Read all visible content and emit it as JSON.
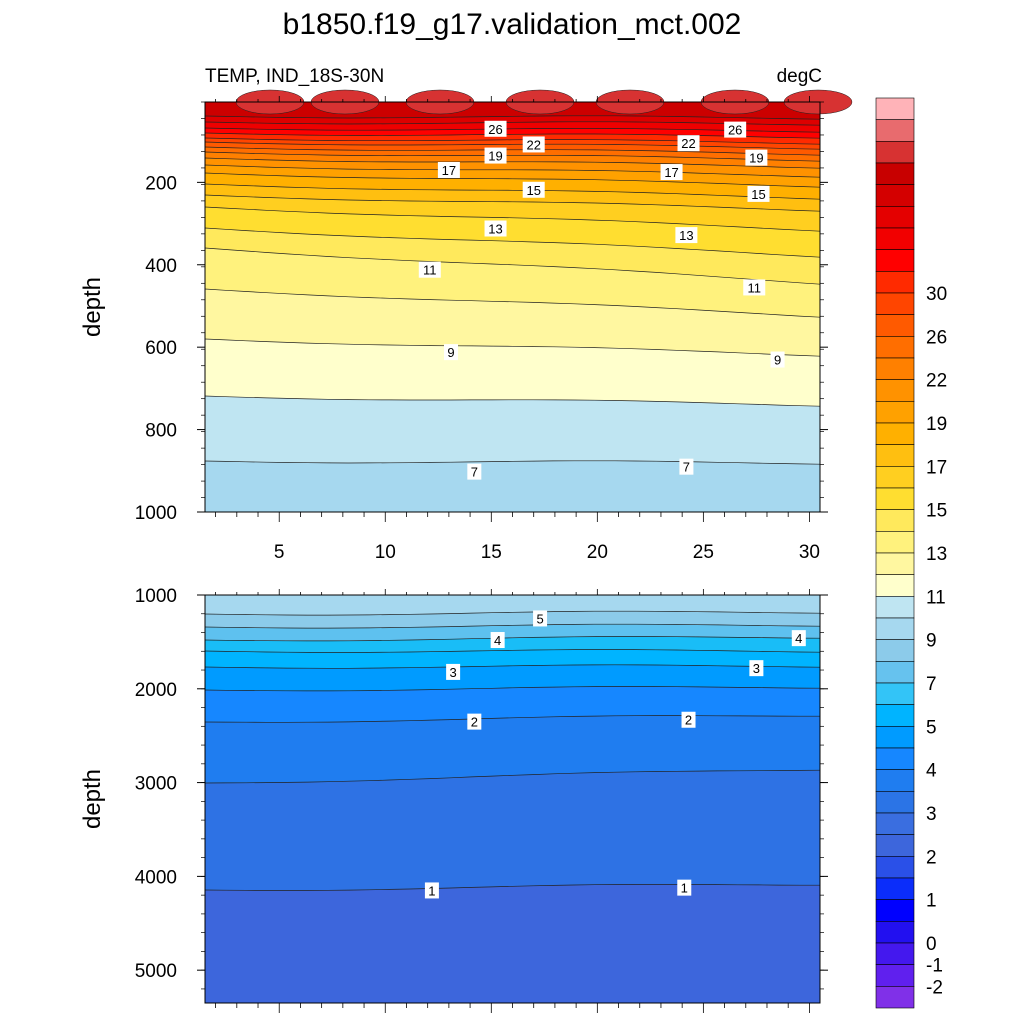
{
  "chart_data": {
    "type": "contour",
    "title": "b1850.f19_g17.validation_mct.002",
    "left_string": "TEMP, IND_18S-30N",
    "right_string": "degC",
    "x": {
      "ticks": [
        5,
        10,
        15,
        20,
        25,
        30
      ],
      "range": [
        1.5,
        30.5
      ]
    },
    "colorbar": {
      "levels": [
        -2,
        -1,
        0,
        1,
        2,
        3,
        4,
        5,
        6,
        7,
        8,
        9,
        10,
        11,
        12,
        13,
        14,
        15,
        16,
        17,
        18,
        19,
        20,
        21,
        22,
        23,
        24,
        25,
        26,
        27,
        28,
        29,
        30,
        31
      ],
      "labels": [
        "-2",
        "-1",
        "0",
        "1",
        "2",
        "3",
        "4",
        "5",
        "7",
        "9",
        "11",
        "13",
        "15",
        "17",
        "19",
        "22",
        "26",
        "30"
      ],
      "colors": [
        "#ffb3b8",
        "#e86b6e",
        "#d73232",
        "#c80000",
        "#d40000",
        "#e40000",
        "#f20000",
        "#ff0000",
        "#ff2a00",
        "#ff4500",
        "#ff5a00",
        "#ff6e00",
        "#ff8000",
        "#ff9200",
        "#ffa100",
        "#ffb000",
        "#ffbf10",
        "#ffcf20",
        "#ffde30",
        "#ffe95c",
        "#fff27d",
        "#fff7a0",
        "#ffffcc",
        "#bfe5f2",
        "#a6d8ef",
        "#8ccbea",
        "#66c2ee",
        "#33c4f7",
        "#00b4ff",
        "#009bff",
        "#1687ff",
        "#1f7df0",
        "#2b74e6",
        "#3a6ee0",
        "#3d66dc",
        "#2a50e8",
        "#0b2dfa",
        "#0000ff",
        "#2210f0",
        "#4418ee",
        "#6020ee",
        "#8030e8"
      ]
    },
    "panels": [
      {
        "id": "upper",
        "ylabel": "depth",
        "y_ticks": [
          200,
          400,
          600,
          800,
          1000
        ],
        "y_range": [
          5,
          1000
        ],
        "contour_labels": [
          {
            "text": "26",
            "x": 15.2,
            "y": 70
          },
          {
            "text": "26",
            "x": 26.5,
            "y": 72
          },
          {
            "text": "22",
            "x": 17.0,
            "y": 108
          },
          {
            "text": "22",
            "x": 24.3,
            "y": 105
          },
          {
            "text": "19",
            "x": 15.2,
            "y": 135
          },
          {
            "text": "19",
            "x": 27.5,
            "y": 140
          },
          {
            "text": "17",
            "x": 13.0,
            "y": 170
          },
          {
            "text": "17",
            "x": 23.5,
            "y": 175
          },
          {
            "text": "15",
            "x": 17.0,
            "y": 218
          },
          {
            "text": "15",
            "x": 27.6,
            "y": 228
          },
          {
            "text": "13",
            "x": 15.2,
            "y": 312
          },
          {
            "text": "13",
            "x": 24.2,
            "y": 328
          },
          {
            "text": "11",
            "x": 12.1,
            "y": 412
          },
          {
            "text": "11",
            "x": 27.4,
            "y": 455
          },
          {
            "text": "9",
            "x": 13.1,
            "y": 612
          },
          {
            "text": "9",
            "x": 28.5,
            "y": 630
          },
          {
            "text": "7",
            "x": 14.2,
            "y": 902
          },
          {
            "text": "7",
            "x": 24.2,
            "y": 890
          }
        ]
      },
      {
        "id": "lower",
        "ylabel": "depth",
        "y_ticks": [
          1000,
          2000,
          3000,
          4000,
          5000
        ],
        "y_range": [
          1000,
          5350
        ],
        "contour_labels": [
          {
            "text": "5",
            "x": 17.3,
            "y": 1250
          },
          {
            "text": "4",
            "x": 15.3,
            "y": 1480
          },
          {
            "text": "4",
            "x": 29.5,
            "y": 1460
          },
          {
            "text": "3",
            "x": 13.2,
            "y": 1820
          },
          {
            "text": "3",
            "x": 27.5,
            "y": 1780
          },
          {
            "text": "2",
            "x": 14.2,
            "y": 2350
          },
          {
            "text": "2",
            "x": 24.3,
            "y": 2330
          },
          {
            "text": "1",
            "x": 12.2,
            "y": 4150
          },
          {
            "text": "1",
            "x": 24.1,
            "y": 4120
          }
        ]
      }
    ]
  }
}
